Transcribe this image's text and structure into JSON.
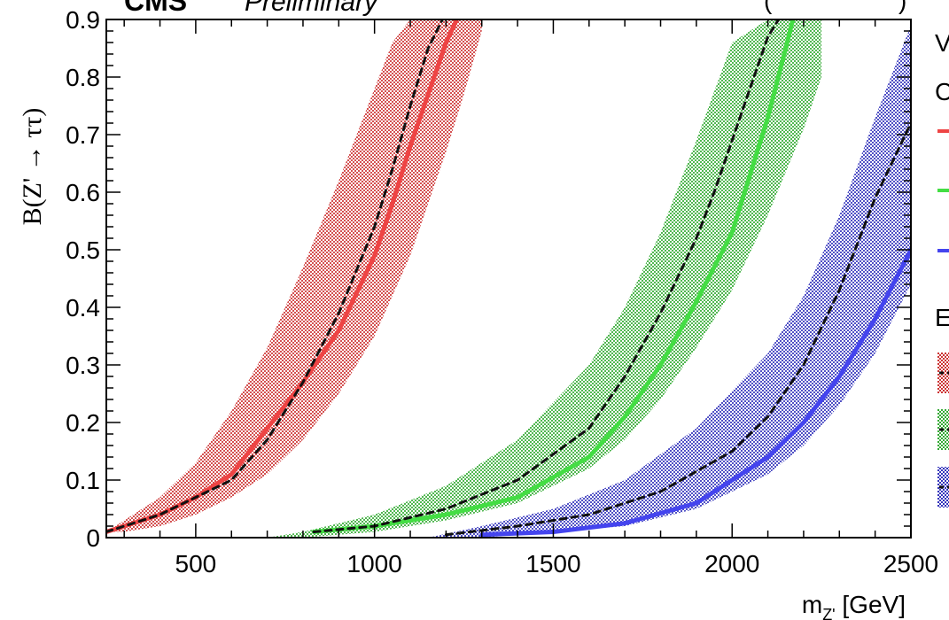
{
  "header": {
    "experiment": "CMS",
    "status": "Preliminary",
    "top_right_fragment": "(",
    "top_right_fragment2": ")"
  },
  "legend": {
    "fragment_v": "V",
    "fragment_c": "C",
    "fragment_e": "E"
  },
  "chart_data": {
    "type": "line",
    "title": "",
    "xlabel": "m_{Z'} [GeV]",
    "ylabel": "B(Z' → ττ)",
    "xlim": [
      250,
      2500
    ],
    "ylim": [
      0,
      0.9
    ],
    "x_ticks": [
      500,
      1000,
      1500,
      2000,
      2500
    ],
    "y_ticks": [
      0,
      0.1,
      0.2,
      0.3,
      0.4,
      0.5,
      0.6,
      0.7,
      0.8,
      0.9
    ],
    "grid": false,
    "legend_position": "right (cut off)",
    "series": [
      {
        "color": "#ee4444",
        "style": "solid",
        "kind": "observed",
        "x": [
          250,
          300,
          400,
          500,
          600,
          700,
          800,
          900,
          1000,
          1050,
          1100,
          1150,
          1200,
          1230
        ],
        "y": [
          0.01,
          0.02,
          0.04,
          0.07,
          0.11,
          0.19,
          0.27,
          0.36,
          0.49,
          0.58,
          0.68,
          0.77,
          0.86,
          0.9
        ]
      },
      {
        "color": "#111111",
        "style": "dashed",
        "kind": "expected",
        "x": [
          250,
          300,
          400,
          500,
          600,
          700,
          800,
          900,
          1000,
          1050,
          1100,
          1150,
          1190
        ],
        "y": [
          0.01,
          0.02,
          0.04,
          0.07,
          0.1,
          0.17,
          0.27,
          0.39,
          0.54,
          0.64,
          0.75,
          0.85,
          0.9
        ]
      },
      {
        "color": "#44dd44",
        "style": "solid",
        "kind": "observed",
        "x": [
          830,
          1000,
          1200,
          1400,
          1600,
          1700,
          1800,
          1900,
          2000,
          2050,
          2100,
          2150,
          2170
        ],
        "y": [
          0.01,
          0.02,
          0.04,
          0.07,
          0.14,
          0.21,
          0.3,
          0.41,
          0.53,
          0.63,
          0.73,
          0.85,
          0.9
        ]
      },
      {
        "color": "#111111",
        "style": "dashed",
        "kind": "expected",
        "x": [
          830,
          1000,
          1200,
          1400,
          1600,
          1700,
          1800,
          1900,
          1950,
          2000,
          2050,
          2100,
          2130
        ],
        "y": [
          0.01,
          0.02,
          0.05,
          0.1,
          0.19,
          0.28,
          0.39,
          0.52,
          0.6,
          0.69,
          0.78,
          0.87,
          0.9
        ]
      },
      {
        "color": "#4444ee",
        "style": "solid",
        "kind": "observed",
        "x": [
          1300,
          1500,
          1700,
          1900,
          2100,
          2200,
          2300,
          2400,
          2500
        ],
        "y": [
          0.005,
          0.01,
          0.025,
          0.06,
          0.14,
          0.2,
          0.28,
          0.38,
          0.5
        ]
      },
      {
        "color": "#111111",
        "style": "dashed",
        "kind": "expected",
        "x": [
          1200,
          1400,
          1600,
          1800,
          2000,
          2100,
          2200,
          2300,
          2400,
          2500
        ],
        "y": [
          0.005,
          0.02,
          0.04,
          0.08,
          0.15,
          0.21,
          0.3,
          0.43,
          0.59,
          0.72
        ]
      }
    ],
    "bands": [
      {
        "color": "#cc3333",
        "x": [
          250,
          300,
          400,
          500,
          600,
          700,
          800,
          900,
          1000,
          1050,
          1100,
          1150,
          1200,
          1250,
          1300
        ],
        "low": [
          0.01,
          0.01,
          0.02,
          0.04,
          0.07,
          0.11,
          0.17,
          0.25,
          0.35,
          0.42,
          0.49,
          0.58,
          0.67,
          0.77,
          0.88
        ],
        "high": [
          0.01,
          0.03,
          0.07,
          0.13,
          0.22,
          0.33,
          0.47,
          0.62,
          0.78,
          0.86,
          0.9,
          0.9,
          0.9,
          0.9,
          0.9
        ]
      },
      {
        "color": "#33aa33",
        "x": [
          700,
          800,
          1000,
          1200,
          1400,
          1600,
          1700,
          1800,
          1900,
          2000,
          2100,
          2200,
          2250
        ],
        "low": [
          0.0,
          0.0,
          0.01,
          0.03,
          0.06,
          0.12,
          0.17,
          0.24,
          0.33,
          0.43,
          0.56,
          0.71,
          0.8
        ],
        "high": [
          0.0,
          0.01,
          0.04,
          0.09,
          0.17,
          0.3,
          0.4,
          0.53,
          0.69,
          0.86,
          0.9,
          0.9,
          0.9
        ]
      },
      {
        "color": "#3333bb",
        "x": [
          1150,
          1300,
          1500,
          1700,
          1900,
          2100,
          2200,
          2300,
          2400,
          2500
        ],
        "low": [
          0.0,
          0.0,
          0.01,
          0.02,
          0.05,
          0.11,
          0.16,
          0.23,
          0.32,
          0.44
        ],
        "high": [
          0.0,
          0.02,
          0.05,
          0.1,
          0.19,
          0.32,
          0.42,
          0.56,
          0.73,
          0.89
        ]
      }
    ]
  }
}
